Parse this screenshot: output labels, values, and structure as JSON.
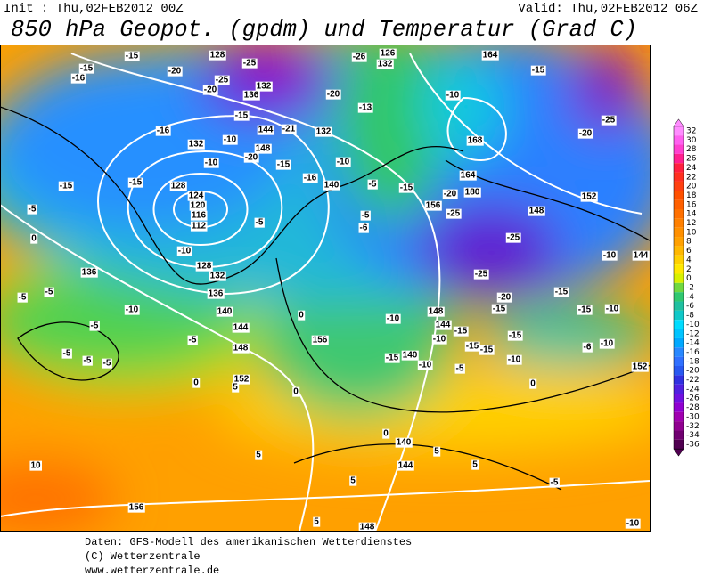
{
  "header": {
    "init": "Init : Thu,02FEB2012 00Z",
    "valid": "Valid: Thu,02FEB2012 06Z",
    "title": "850 hPa Geopot. (gpdm) und Temperatur (Grad C)"
  },
  "colorbar": {
    "labels": [
      32,
      30,
      28,
      26,
      24,
      22,
      20,
      18,
      16,
      14,
      12,
      10,
      8,
      6,
      4,
      2,
      0,
      -2,
      -4,
      -6,
      -8,
      -10,
      -12,
      -14,
      -16,
      -18,
      -20,
      -22,
      -24,
      -26,
      -28,
      -30,
      -32,
      -34,
      -36
    ],
    "colors": [
      "#ff8cff",
      "#ff60f0",
      "#ff40d0",
      "#ff2090",
      "#ff2040",
      "#ff3020",
      "#ff4010",
      "#ff5000",
      "#ff6000",
      "#ff7000",
      "#ff8000",
      "#ff9000",
      "#ffa000",
      "#ffb800",
      "#ffd000",
      "#ffe800",
      "#d8f000",
      "#70d840",
      "#30c870",
      "#20c0a0",
      "#10c8c8",
      "#00dcff",
      "#00c4ff",
      "#00a8ff",
      "#2888ff",
      "#3070ff",
      "#2858f0",
      "#3030e0",
      "#5020e0",
      "#7010e0",
      "#9000d0",
      "#a000b0",
      "#900090",
      "#700070",
      "#500050"
    ]
  },
  "map": {
    "labels": [
      "-15",
      "-16",
      "-15",
      "128",
      "-25",
      "-25",
      "132",
      "-20",
      "-20",
      "136",
      "-20",
      "-15",
      "-21",
      "144",
      "132",
      "-16",
      "132",
      "148",
      "-10",
      "-20",
      "-15",
      "-10",
      "-15",
      "-15",
      "128",
      "124",
      "120",
      "116",
      "112",
      "-5",
      "-5",
      "0",
      "-10",
      "128",
      "132",
      "136",
      "136",
      "-10",
      "140",
      "144",
      "-5",
      "148",
      "0",
      "156",
      "-5",
      "-5",
      "-5",
      "-5",
      "-5",
      "-5",
      "0",
      "152",
      "-26",
      "132",
      "126",
      "-10",
      "-13",
      "164",
      "-15",
      "-25",
      "168",
      "-20",
      "164",
      "180",
      "-20",
      "156",
      "-25",
      "148",
      "152",
      "-25",
      "-25",
      "-10",
      "144",
      "-15",
      "-20",
      "-15",
      "-15",
      "-10",
      "148",
      "144",
      "-10",
      "-15",
      "-15",
      "-15",
      "-15",
      "-10",
      "-10",
      "-15",
      "140",
      "-10",
      "-5",
      "-10",
      "-6",
      "152",
      "0",
      "0",
      "0",
      "140",
      "144",
      "5",
      "5",
      "-5",
      "5",
      "5",
      "148",
      "156",
      "10",
      "5",
      "5",
      "-10",
      "-5",
      "-6",
      "-15",
      "-5",
      "-16",
      "140",
      "-10"
    ]
  },
  "footer": {
    "lines": [
      "Daten: GFS-Modell des amerikanischen Wetterdienstes",
      "(C) Wetterzentrale",
      "www.wetterzentrale.de"
    ]
  }
}
